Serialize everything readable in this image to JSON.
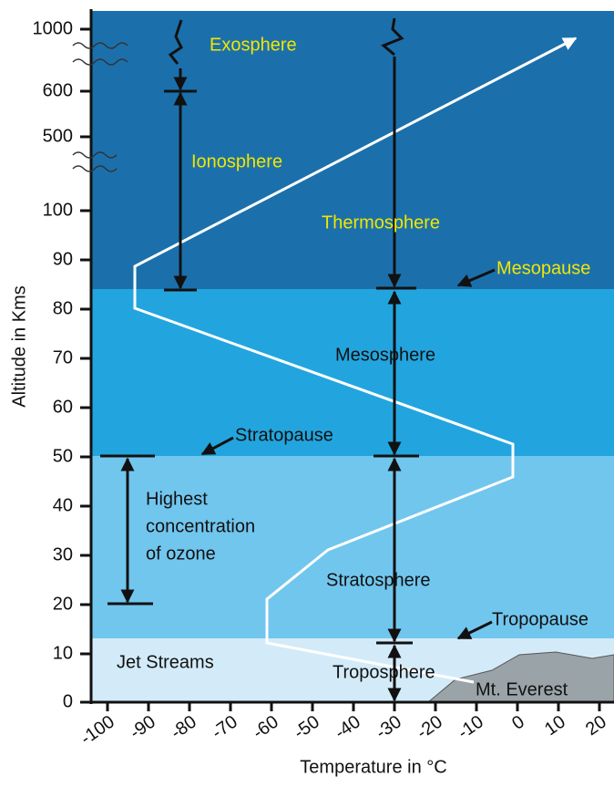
{
  "y_axis": {
    "title": "Altitude in Kms",
    "ticks": [
      1000,
      600,
      500,
      100,
      90,
      80,
      70,
      60,
      50,
      40,
      30,
      20,
      10,
      0
    ]
  },
  "x_axis": {
    "title": "Temperature in °C",
    "ticks": [
      -100,
      -90,
      -80,
      -70,
      -60,
      -50,
      -40,
      -30,
      -20,
      -10,
      0,
      10,
      20
    ]
  },
  "labels": {
    "exosphere": "Exosphere",
    "ionosphere": "Ionosphere",
    "thermosphere": "Thermosphere",
    "mesopause": "Mesopause",
    "mesosphere": "Mesosphere",
    "stratopause": "Stratopause",
    "ozone": [
      "Highest",
      "concentration",
      "of ozone"
    ],
    "stratosphere": "Stratosphere",
    "tropopause": "Tropopause",
    "jet_streams": "Jet Streams",
    "troposphere": "Troposphere",
    "everest": "Mt. Everest"
  }
}
